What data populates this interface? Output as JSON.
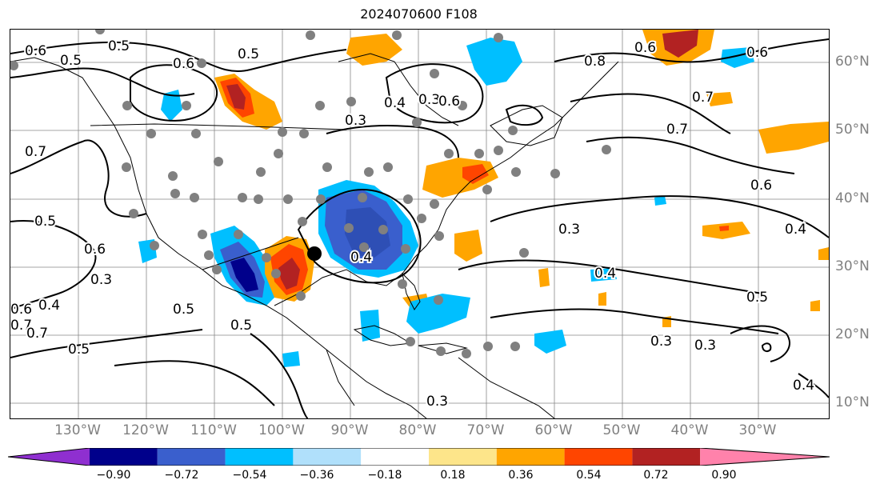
{
  "title": "2024070600 F108",
  "lat_labels": [
    "60°N",
    "50°N",
    "40°N",
    "30°N",
    "20°N",
    "10°N"
  ],
  "lon_labels": [
    "130°W",
    "120°W",
    "110°W",
    "100°W",
    "90°W",
    "80°W",
    "70°W",
    "60°W",
    "50°W",
    "40°W",
    "30°W"
  ],
  "colorbar": {
    "ticks": [
      "−0.90",
      "−0.72",
      "−0.54",
      "−0.36",
      "−0.18",
      "0.18",
      "0.36",
      "0.54",
      "0.72",
      "0.90"
    ],
    "colors": [
      "#8f2fd0",
      "#00008b",
      "#3a5fcd",
      "#00bfff",
      "#b0e0fb",
      "#ffffff",
      "#fde58a",
      "#ffa500",
      "#ff4500",
      "#b22222",
      "#ff82ab"
    ]
  },
  "contour_labels": [
    "0.6",
    "0.5",
    "0.5",
    "0.6",
    "0.5",
    "0.7",
    "0.5",
    "0.3",
    "0.6",
    "0.3",
    "0.4",
    "0.3",
    "0.6",
    "0.7",
    "0.8",
    "0.6",
    "0.6",
    "0.7",
    "0.6",
    "0.4",
    "0.3",
    "0.4",
    "0.5",
    "0.3",
    "0.4",
    "0.3",
    "0.5",
    "0.4",
    "0.4",
    "0.7",
    "0.5",
    "0.6",
    "0.7",
    "0.3",
    "0.5"
  ]
}
